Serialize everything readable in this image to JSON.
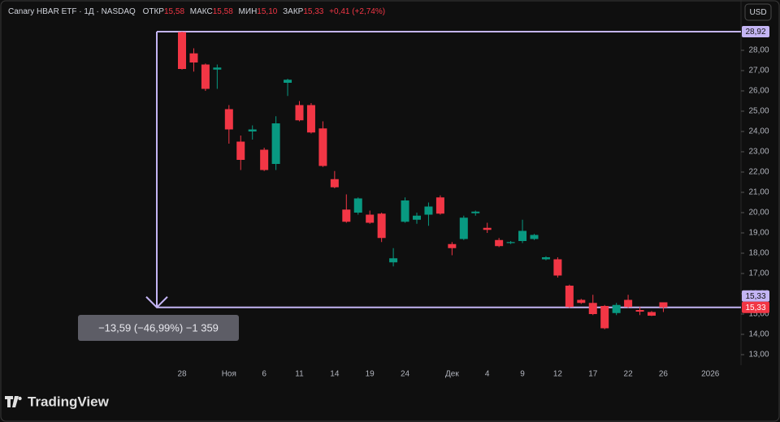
{
  "chart_data": {
    "type": "candlestick",
    "title": "Canary HBAR ETF · 1Д · NASDAQ",
    "header_stats": [
      {
        "label": "ОТКР",
        "value": "15,58"
      },
      {
        "label": "МАКС",
        "value": "15,58"
      },
      {
        "label": "МИН",
        "value": "15,10"
      },
      {
        "label": "ЗАКР",
        "value": "15,33"
      }
    ],
    "change": "+0,41 (+2,74%)",
    "currency": "USD",
    "categories": [
      "28",
      null,
      null,
      null,
      "Ноя",
      null,
      null,
      "6",
      null,
      null,
      "11",
      null,
      null,
      "14",
      null,
      null,
      "19",
      null,
      null,
      "24",
      null,
      null,
      null,
      "Дек",
      null,
      null,
      "4",
      null,
      null,
      "9",
      null,
      null,
      "12",
      null,
      null,
      "17",
      null,
      null,
      "22",
      null,
      null,
      "26",
      null,
      null,
      null,
      "2026"
    ],
    "open": [
      28.9,
      27.85,
      27.3,
      27.05,
      25.1,
      23.5,
      24.0,
      23.1,
      22.4,
      26.4,
      25.3,
      25.3,
      24.15,
      21.65,
      20.15,
      20.0,
      19.9,
      19.95,
      17.55,
      19.55,
      19.65,
      19.9,
      20.75,
      18.45,
      18.7,
      19.97,
      19.25,
      18.65,
      18.5,
      18.6,
      18.7,
      17.7,
      17.7,
      16.4,
      15.7,
      15.55,
      15.4,
      15.05,
      15.7,
      15.2,
      15.1,
      15.58,
      null,
      null,
      null,
      null
    ],
    "high": [
      28.92,
      28.1,
      27.35,
      27.3,
      25.3,
      23.8,
      24.3,
      23.2,
      24.75,
      26.6,
      25.5,
      25.4,
      24.5,
      22.05,
      20.9,
      20.75,
      20.1,
      20.0,
      18.25,
      20.75,
      20.0,
      20.5,
      20.85,
      18.55,
      19.85,
      20.1,
      19.5,
      18.75,
      18.6,
      19.65,
      18.95,
      17.85,
      17.8,
      16.45,
      15.75,
      15.95,
      15.45,
      15.55,
      15.95,
      15.35,
      15.15,
      15.58,
      null,
      null,
      null,
      null
    ],
    "low": [
      27.05,
      26.95,
      26.0,
      26.1,
      23.4,
      22.1,
      23.6,
      22.05,
      22.1,
      25.75,
      24.5,
      23.9,
      22.25,
      21.2,
      19.5,
      19.9,
      19.45,
      18.55,
      17.35,
      19.5,
      19.45,
      19.35,
      19.9,
      17.9,
      18.65,
      19.85,
      19.0,
      18.3,
      18.45,
      18.5,
      18.65,
      17.65,
      16.8,
      15.3,
      15.5,
      14.95,
      14.25,
      14.95,
      15.3,
      14.95,
      14.9,
      15.1,
      null,
      null,
      null,
      null
    ],
    "close": [
      27.08,
      27.4,
      26.1,
      27.15,
      24.1,
      22.6,
      24.1,
      22.1,
      24.4,
      26.55,
      24.55,
      23.95,
      22.3,
      21.25,
      19.55,
      20.7,
      19.5,
      18.75,
      17.75,
      20.6,
      19.85,
      20.3,
      19.95,
      18.25,
      19.75,
      20.05,
      19.15,
      18.35,
      18.55,
      19.1,
      18.9,
      17.8,
      16.9,
      15.35,
      15.55,
      15.0,
      14.3,
      15.45,
      15.35,
      15.12,
      14.92,
      15.33,
      null,
      null,
      null,
      null
    ],
    "up_color": "#089981",
    "down_color": "#f23645",
    "ylim": [
      12.48,
      30.48
    ],
    "yticks": [
      {
        "value": 13,
        "label": "13,00"
      },
      {
        "value": 14,
        "label": "14,00"
      },
      {
        "value": 15,
        "label": "15,00"
      },
      {
        "value": 16,
        "label": "16,00"
      },
      {
        "value": 17,
        "label": "17,00"
      },
      {
        "value": 18,
        "label": "18,00"
      },
      {
        "value": 19,
        "label": "19,00"
      },
      {
        "value": 20,
        "label": "20,00"
      },
      {
        "value": 21,
        "label": "21,00"
      },
      {
        "value": 22,
        "label": "22,00"
      },
      {
        "value": 23,
        "label": "23,00"
      },
      {
        "value": 24,
        "label": "24,00"
      },
      {
        "value": 25,
        "label": "25,00"
      },
      {
        "value": 26,
        "label": "26,00"
      },
      {
        "value": 27,
        "label": "27,00"
      },
      {
        "value": 28,
        "label": "28,00"
      }
    ],
    "measure": {
      "from": {
        "value": 28.92,
        "label": "28,92"
      },
      "to": {
        "value": 15.33,
        "label": "15,33"
      },
      "label": "−13,59 (−46,99%) −1 359",
      "color": "#c4b5f4"
    },
    "last_price": {
      "value": 15.33,
      "label": "15,33"
    }
  },
  "brand": "TradingView"
}
